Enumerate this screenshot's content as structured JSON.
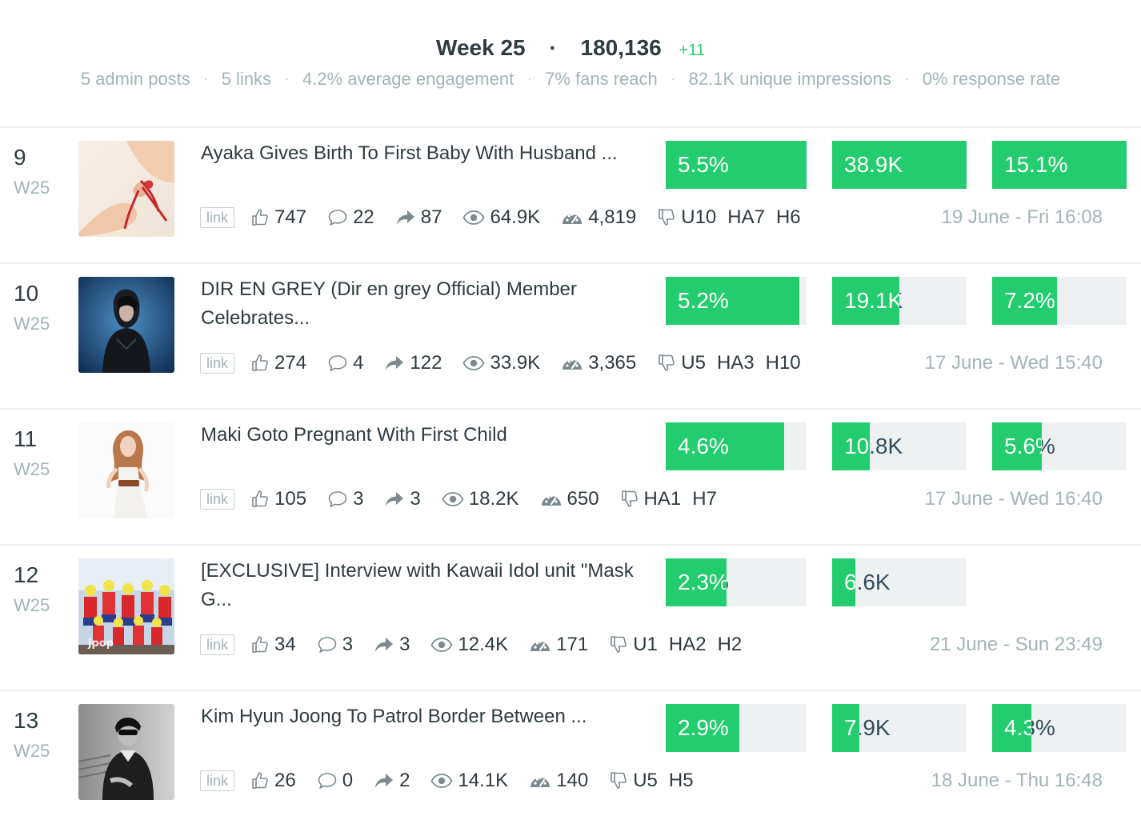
{
  "header": {
    "week_label": "Week 25",
    "dot": "·",
    "total": "180,136",
    "delta": "+11",
    "stats": [
      "5 admin posts",
      "5 links",
      "4.2% average engagement",
      "7% fans reach",
      "82.1K unique impressions",
      "0% response rate"
    ],
    "stat_separator": "·"
  },
  "colors": {
    "bar_fill": "#23cc6e",
    "bar_track": "#eef1f2",
    "muted_text": "#a3b3b7",
    "delta": "#2ecc71"
  },
  "posts": [
    {
      "rank": "9",
      "week": "W25",
      "title": "Ayaka Gives Birth To First Baby With Husband ...",
      "bars": [
        {
          "label": "5.5%",
          "fill_fraction": 1.0
        },
        {
          "label": "38.9K",
          "fill_fraction": 1.0
        },
        {
          "label": "15.1%",
          "fill_fraction": 1.0
        }
      ],
      "link_label": "link",
      "likes": "747",
      "comments": "22",
      "shares": "87",
      "views": "64.9K",
      "clicks": "4,819",
      "negative": [
        "U10",
        "HA7",
        "H6"
      ],
      "date": "19 June - Fri 16:08",
      "thumb_icon": "photo-hands-ribbon"
    },
    {
      "rank": "10",
      "week": "W25",
      "title": "DIR EN GREY (Dir en grey Official) Member Celebrates...",
      "bars": [
        {
          "label": "5.2%",
          "fill_fraction": 0.95
        },
        {
          "label": "19.1K",
          "fill_fraction": 0.5
        },
        {
          "label": "7.2%",
          "fill_fraction": 0.48
        }
      ],
      "link_label": "link",
      "likes": "274",
      "comments": "4",
      "shares": "122",
      "views": "33.9K",
      "clicks": "3,365",
      "negative": [
        "U5",
        "HA3",
        "H10"
      ],
      "date": "17 June - Wed 15:40",
      "thumb_icon": "photo-musician-blue"
    },
    {
      "rank": "11",
      "week": "W25",
      "title": "Maki Goto Pregnant With First Child",
      "bars": [
        {
          "label": "4.6%",
          "fill_fraction": 0.84
        },
        {
          "label": "10.8K",
          "fill_fraction": 0.28
        },
        {
          "label": "5.6%",
          "fill_fraction": 0.37
        }
      ],
      "link_label": "link",
      "likes": "105",
      "comments": "3",
      "shares": "3",
      "views": "18.2K",
      "clicks": "650",
      "negative": [
        "HA1",
        "H7"
      ],
      "date": "17 June - Wed 16:40",
      "thumb_icon": "photo-woman-white-dress"
    },
    {
      "rank": "12",
      "week": "W25",
      "title": "[EXCLUSIVE] Interview with Kawaii Idol unit \"Mask G...",
      "bars": [
        {
          "label": "2.3%",
          "fill_fraction": 0.43
        },
        {
          "label": "6.6K",
          "fill_fraction": 0.17
        }
      ],
      "link_label": "link",
      "likes": "34",
      "comments": "3",
      "shares": "3",
      "views": "12.4K",
      "clicks": "171",
      "negative": [
        "U1",
        "HA2",
        "H2"
      ],
      "date": "21 June - Sun 23:49",
      "thumb_icon": "photo-idol-group",
      "thumb_watermark": "jpop"
    },
    {
      "rank": "13",
      "week": "W25",
      "title": "Kim Hyun Joong To Patrol Border Between ...",
      "bars": [
        {
          "label": "2.9%",
          "fill_fraction": 0.52
        },
        {
          "label": "7.9K",
          "fill_fraction": 0.2
        },
        {
          "label": "4.3%",
          "fill_fraction": 0.29
        }
      ],
      "link_label": "link",
      "likes": "26",
      "comments": "0",
      "shares": "2",
      "views": "14.1K",
      "clicks": "140",
      "negative": [
        "U5",
        "H5"
      ],
      "date": "18 June - Thu 16:48",
      "thumb_icon": "photo-man-bw"
    }
  ]
}
